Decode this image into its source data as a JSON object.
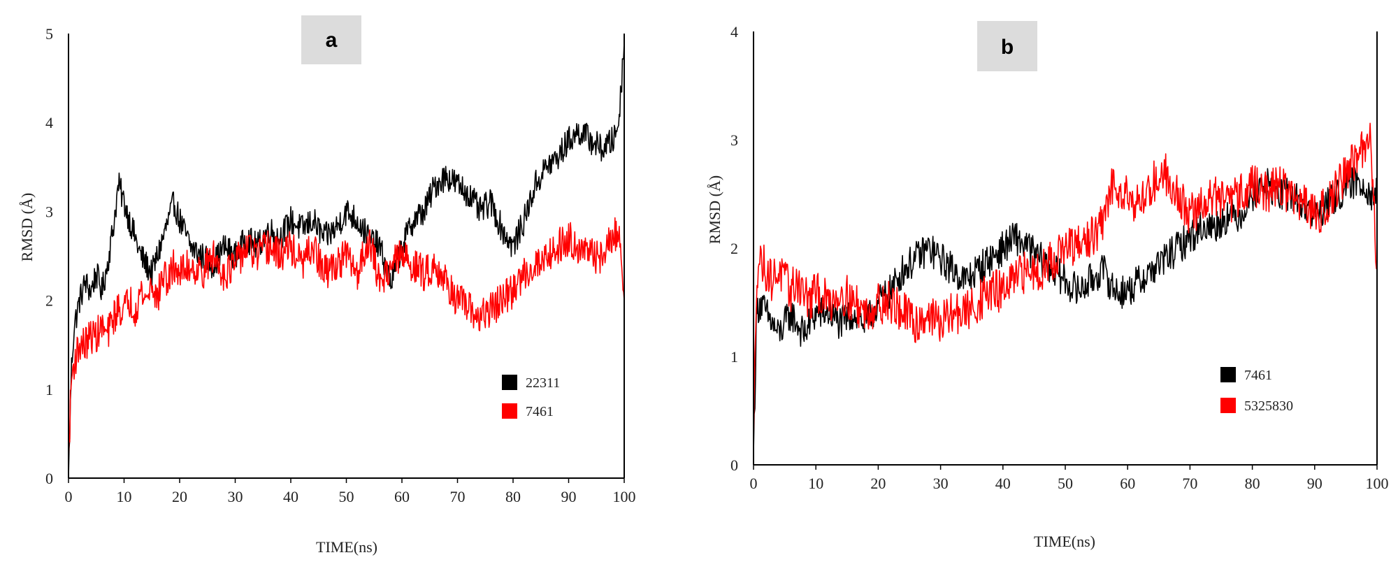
{
  "chart_data": [
    {
      "type": "line",
      "panel_label": "a",
      "xlabel": "TIME(ns)",
      "ylabel": "RMSD (Å)",
      "xlim": [
        0,
        100
      ],
      "ylim": [
        0,
        5
      ],
      "xticks": [
        "0",
        "10",
        "20",
        "30",
        "40",
        "50",
        "60",
        "70",
        "80",
        "90",
        "100"
      ],
      "yticks": [
        "0",
        "1",
        "2",
        "3",
        "4",
        "5"
      ],
      "grid": false,
      "legend_position": "lower-right",
      "series": [
        {
          "name": "22311",
          "color": "#000000",
          "x": [
            0,
            0.5,
            1,
            2,
            3,
            4,
            5,
            6,
            7,
            8,
            9,
            10,
            11,
            12,
            13,
            14,
            15,
            16,
            17,
            18,
            19,
            20,
            22,
            24,
            26,
            28,
            30,
            32,
            34,
            36,
            38,
            40,
            42,
            44,
            46,
            48,
            50,
            52,
            54,
            56,
            58,
            60,
            62,
            64,
            66,
            68,
            70,
            72,
            74,
            76,
            78,
            80,
            82,
            84,
            86,
            88,
            90,
            92,
            94,
            96,
            98,
            99,
            100
          ],
          "y": [
            0.0,
            1.2,
            1.7,
            2.0,
            2.2,
            2.1,
            2.3,
            2.1,
            2.4,
            2.8,
            3.3,
            3.1,
            2.9,
            2.7,
            2.5,
            2.4,
            2.3,
            2.5,
            2.7,
            2.9,
            3.1,
            2.9,
            2.6,
            2.5,
            2.4,
            2.6,
            2.5,
            2.7,
            2.6,
            2.8,
            2.7,
            2.9,
            2.8,
            2.9,
            2.7,
            2.8,
            3.0,
            2.9,
            2.7,
            2.6,
            2.2,
            2.6,
            2.9,
            3.0,
            3.3,
            3.4,
            3.3,
            3.2,
            3.0,
            3.1,
            2.8,
            2.6,
            2.9,
            3.3,
            3.5,
            3.6,
            3.8,
            3.9,
            3.8,
            3.7,
            3.8,
            4.0,
            4.9
          ]
        },
        {
          "name": "7461",
          "color": "#ff0000",
          "x": [
            0,
            0.5,
            1,
            2,
            3,
            4,
            5,
            6,
            7,
            8,
            9,
            10,
            11,
            12,
            13,
            14,
            15,
            16,
            17,
            18,
            19,
            20,
            22,
            24,
            26,
            28,
            30,
            32,
            34,
            36,
            38,
            40,
            42,
            44,
            46,
            48,
            50,
            52,
            54,
            56,
            58,
            60,
            62,
            64,
            66,
            68,
            70,
            72,
            74,
            76,
            78,
            80,
            82,
            84,
            86,
            88,
            90,
            92,
            94,
            96,
            98,
            99,
            100
          ],
          "y": [
            0.2,
            1.1,
            1.3,
            1.5,
            1.5,
            1.6,
            1.6,
            1.7,
            1.6,
            1.8,
            1.9,
            1.9,
            2.0,
            1.9,
            2.1,
            2.0,
            2.2,
            2.0,
            2.3,
            2.2,
            2.4,
            2.3,
            2.4,
            2.3,
            2.5,
            2.3,
            2.4,
            2.6,
            2.5,
            2.6,
            2.5,
            2.6,
            2.4,
            2.6,
            2.3,
            2.4,
            2.5,
            2.3,
            2.7,
            2.2,
            2.4,
            2.5,
            2.4,
            2.3,
            2.4,
            2.2,
            2.0,
            1.9,
            1.8,
            1.9,
            2.0,
            2.1,
            2.3,
            2.4,
            2.5,
            2.6,
            2.7,
            2.6,
            2.5,
            2.5,
            2.7,
            2.8,
            2.0
          ]
        }
      ]
    },
    {
      "type": "line",
      "panel_label": "b",
      "xlabel": "TIME(ns)",
      "ylabel": "RMSD (Å)",
      "xlim": [
        0,
        100
      ],
      "ylim": [
        0,
        4
      ],
      "xticks": [
        "0",
        "10",
        "20",
        "30",
        "40",
        "50",
        "60",
        "70",
        "80",
        "90",
        "100"
      ],
      "yticks": [
        "0",
        "1",
        "2",
        "3",
        "4"
      ],
      "grid": false,
      "legend_position": "lower-right",
      "series": [
        {
          "name": "7461",
          "color": "#000000",
          "x": [
            0,
            0.5,
            1,
            2,
            3,
            4,
            5,
            6,
            7,
            8,
            9,
            10,
            12,
            14,
            16,
            18,
            20,
            22,
            24,
            26,
            28,
            30,
            32,
            34,
            36,
            38,
            40,
            42,
            44,
            46,
            48,
            50,
            52,
            54,
            56,
            58,
            60,
            62,
            64,
            66,
            68,
            70,
            72,
            74,
            76,
            78,
            80,
            82,
            84,
            86,
            88,
            90,
            92,
            94,
            96,
            98,
            99,
            100
          ],
          "y": [
            0.1,
            1.4,
            1.5,
            1.4,
            1.3,
            1.2,
            1.3,
            1.4,
            1.3,
            1.2,
            1.3,
            1.4,
            1.4,
            1.3,
            1.4,
            1.3,
            1.5,
            1.6,
            1.8,
            1.9,
            2.0,
            1.9,
            1.8,
            1.7,
            1.8,
            1.9,
            2.0,
            2.1,
            2.0,
            1.9,
            1.8,
            1.7,
            1.6,
            1.7,
            1.8,
            1.6,
            1.6,
            1.7,
            1.8,
            1.9,
            2.0,
            2.1,
            2.2,
            2.2,
            2.3,
            2.3,
            2.5,
            2.6,
            2.5,
            2.5,
            2.4,
            2.3,
            2.4,
            2.5,
            2.6,
            2.6,
            2.5,
            2.5
          ]
        },
        {
          "name": "5325830",
          "color": "#ff0000",
          "x": [
            0,
            0.5,
            1,
            2,
            3,
            4,
            5,
            6,
            7,
            8,
            9,
            10,
            12,
            14,
            16,
            18,
            20,
            22,
            24,
            26,
            28,
            30,
            32,
            34,
            36,
            38,
            40,
            42,
            44,
            46,
            48,
            50,
            52,
            54,
            56,
            57,
            58,
            60,
            62,
            64,
            66,
            68,
            70,
            72,
            74,
            76,
            78,
            80,
            82,
            84,
            86,
            88,
            90,
            92,
            94,
            96,
            98,
            99,
            100
          ],
          "y": [
            0.2,
            1.8,
            1.9,
            1.8,
            1.7,
            1.8,
            1.7,
            1.6,
            1.7,
            1.6,
            1.5,
            1.6,
            1.5,
            1.6,
            1.5,
            1.4,
            1.5,
            1.5,
            1.4,
            1.3,
            1.4,
            1.3,
            1.4,
            1.4,
            1.5,
            1.6,
            1.6,
            1.7,
            1.8,
            1.8,
            1.9,
            2.0,
            2.0,
            2.1,
            2.2,
            2.5,
            2.6,
            2.5,
            2.4,
            2.6,
            2.7,
            2.5,
            2.3,
            2.4,
            2.5,
            2.4,
            2.5,
            2.6,
            2.5,
            2.6,
            2.5,
            2.4,
            2.3,
            2.4,
            2.6,
            2.8,
            2.9,
            3.0,
            1.8
          ]
        }
      ]
    }
  ]
}
